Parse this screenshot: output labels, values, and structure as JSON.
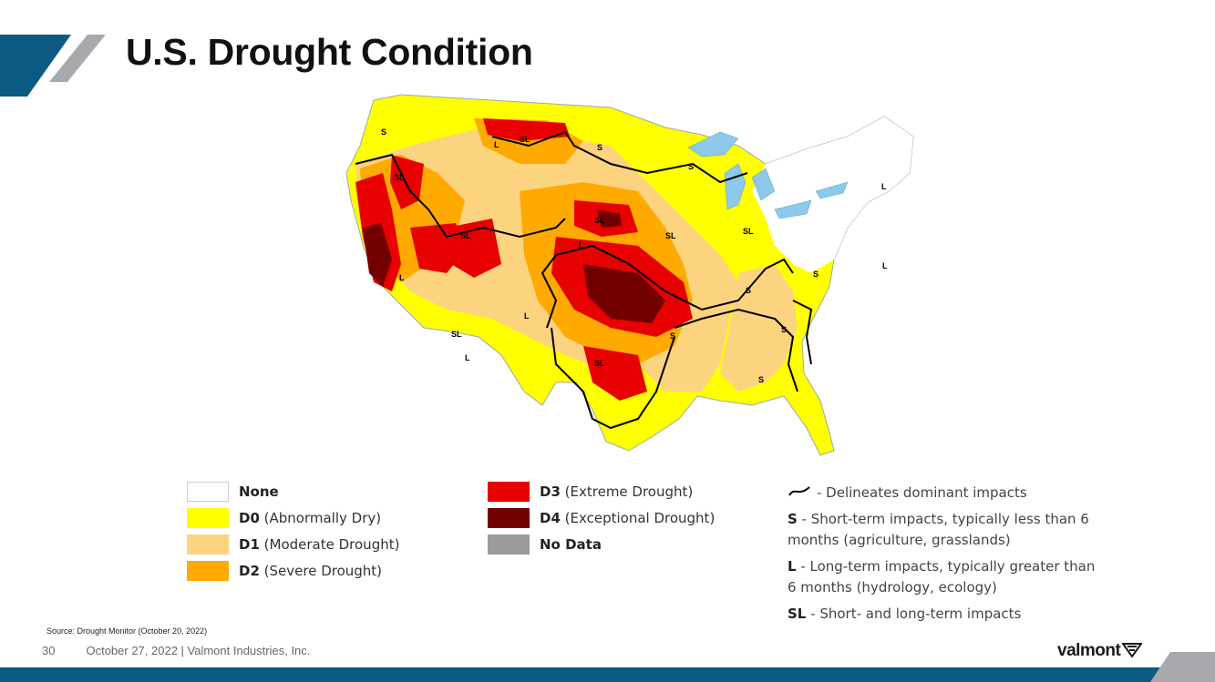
{
  "title": "U.S. Drought Condition",
  "legend": [
    {
      "code": "None",
      "desc": "",
      "color": "#ffffff"
    },
    {
      "code": "D0",
      "desc": " (Abnormally Dry)",
      "color": "#ffff00"
    },
    {
      "code": "D1",
      "desc": " (Moderate Drought)",
      "color": "#fcd37f"
    },
    {
      "code": "D2",
      "desc": " (Severe Drought)",
      "color": "#ffaa00"
    },
    {
      "code": "D3",
      "desc": " (Extreme Drought)",
      "color": "#e60000"
    },
    {
      "code": "D4",
      "desc": " (Exceptional Drought)",
      "color": "#730000"
    },
    {
      "code": "No Data",
      "desc": "",
      "color": "#9b9b9b"
    }
  ],
  "impacts": {
    "delineates": "- Delineates dominant impacts",
    "s_code": "S",
    "s_desc": " - Short-term impacts, typically less than 6 months (agriculture, grasslands)",
    "l_code": "L",
    "l_desc": " - Long-term impacts, typically greater than 6 months (hydrology, ecology)",
    "sl_code": "SL",
    "sl_desc": " - Short- and long-term impacts"
  },
  "map_labels": [
    "S",
    "SL",
    "L",
    "SL",
    "S",
    "L",
    "SL",
    "SL",
    "S",
    "SL",
    "SL",
    "L",
    "L",
    "L",
    "S",
    "S",
    "S",
    "SL",
    "S",
    "L",
    "S",
    "L",
    "SL"
  ],
  "source": "Source: Drought Monitor (October 20, 2022)",
  "footer": {
    "page": "30",
    "text": "October 27, 2022  |  Valmont Industries, Inc."
  },
  "logo": "valmont",
  "colors": {
    "accent_blue": "#0a5a83",
    "accent_gray": "#a7a9ac"
  }
}
